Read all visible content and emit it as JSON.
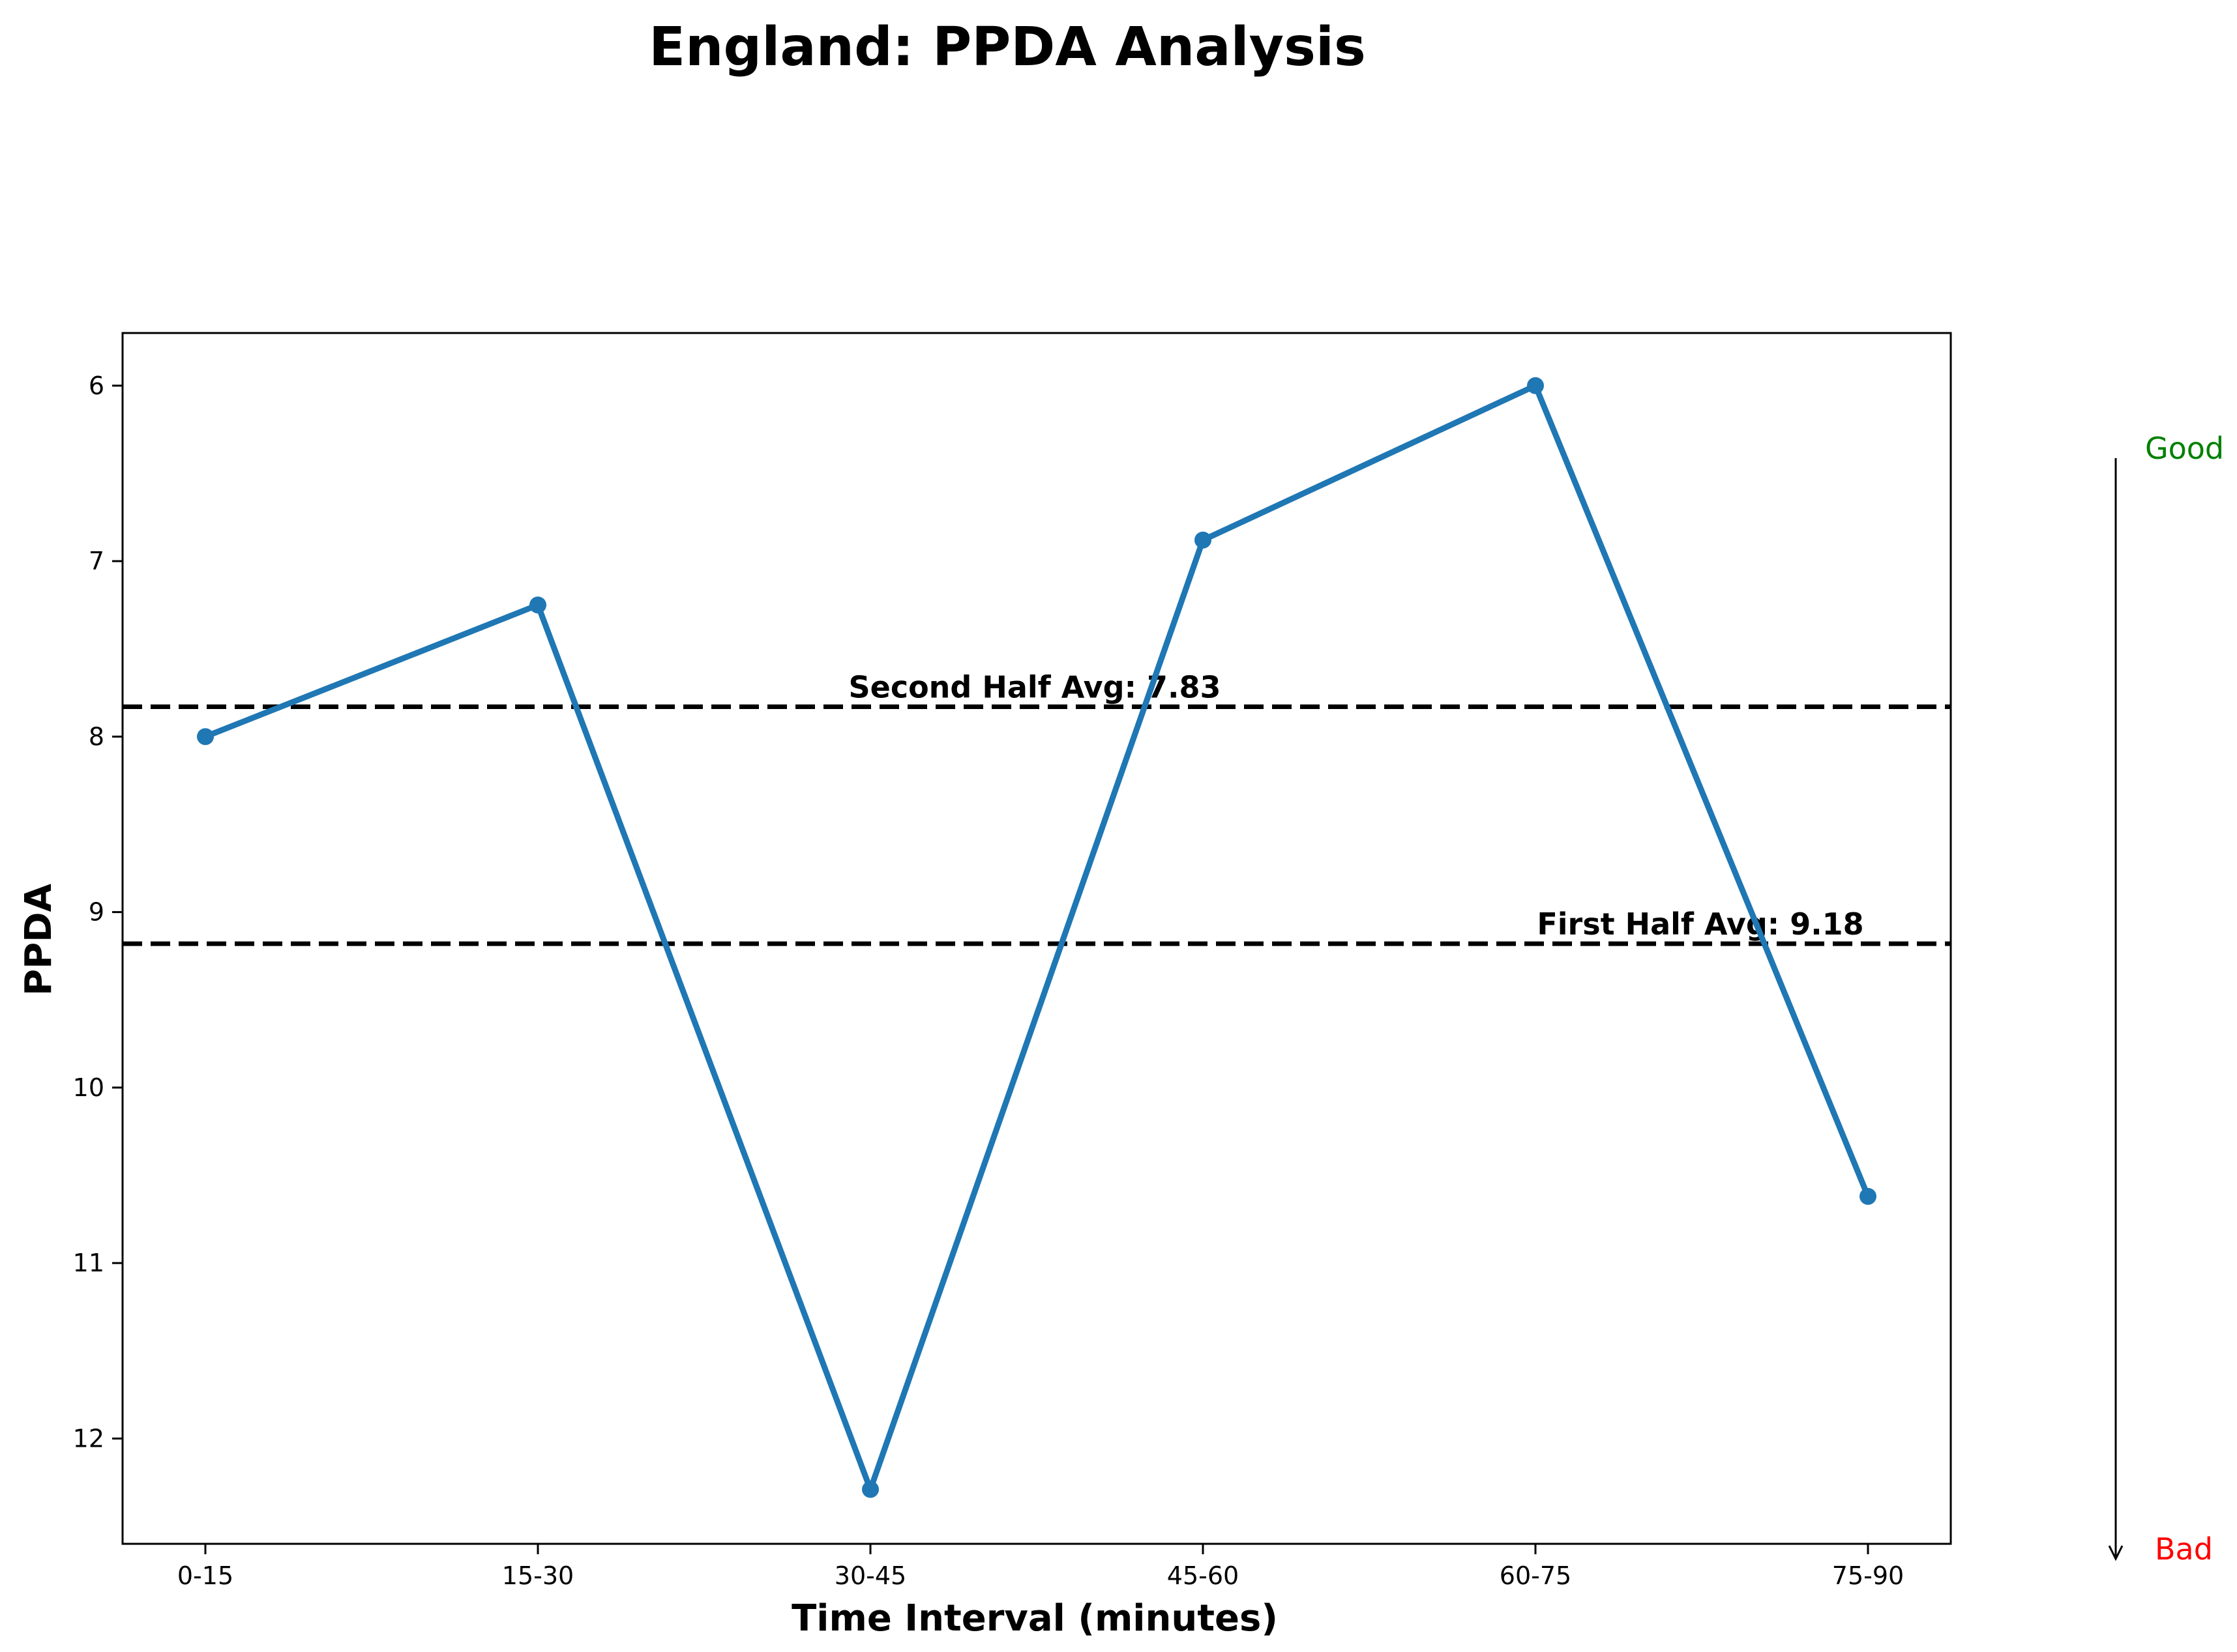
{
  "chart_data": {
    "type": "line",
    "title": "England: PPDA Analysis",
    "xlabel": "Time Interval (minutes)",
    "ylabel": "PPDA",
    "categories": [
      "0-15",
      "15-30",
      "30-45",
      "45-60",
      "60-75",
      "75-90"
    ],
    "series": [
      {
        "values": [
          8.0,
          7.25,
          12.29,
          6.88,
          6.0,
          10.62
        ]
      }
    ],
    "ylim": [
      12.6,
      5.7
    ],
    "y_inverted": true,
    "yticks": [
      6,
      7,
      8,
      9,
      10,
      11,
      12
    ],
    "reference_lines": [
      {
        "label": "Second Half Avg: 7.83",
        "value": 7.83,
        "style": "dashed"
      },
      {
        "label": "First Half Avg: 9.18",
        "value": 9.18,
        "style": "dashed"
      }
    ],
    "scale_indicator": {
      "top": "Good",
      "bottom": "Bad"
    },
    "colors": {
      "series": "#1f77b4",
      "reference": "#000000",
      "good": "#008000",
      "bad": "#ff0000"
    },
    "grid": false,
    "legend": "none"
  }
}
